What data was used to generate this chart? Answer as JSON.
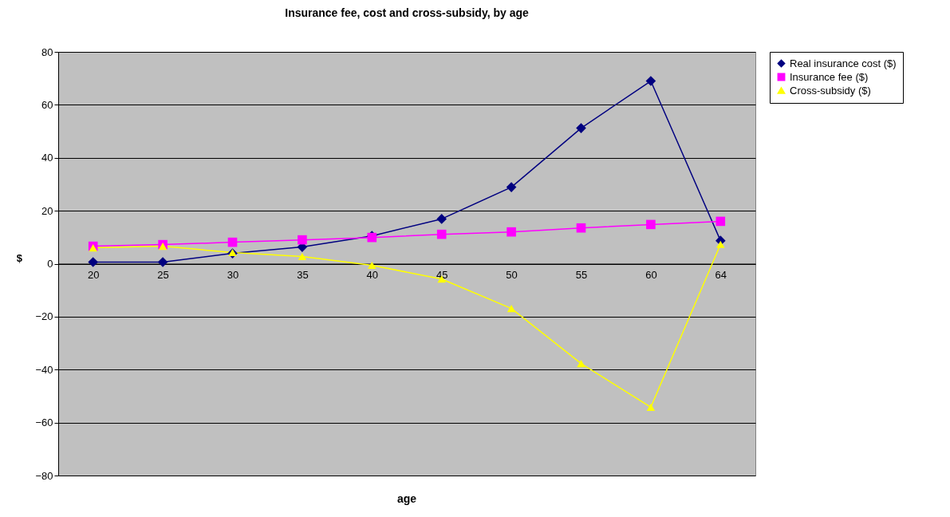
{
  "chart_data": {
    "type": "line",
    "title": "Insurance fee, cost and cross-subsidy, by age",
    "xlabel": "age",
    "ylabel": "$",
    "categories": [
      "20",
      "25",
      "30",
      "35",
      "40",
      "45",
      "50",
      "55",
      "60",
      "64"
    ],
    "series": [
      {
        "name": "Real insurance cost ($)",
        "color": "#000080",
        "marker": "diamond",
        "values": [
          0.6,
          0.6,
          3.9,
          6.3,
          10.5,
          16.9,
          28.9,
          51.2,
          69,
          8.7
        ]
      },
      {
        "name": "Insurance fee ($)",
        "color": "#ff00ff",
        "marker": "square",
        "values": [
          6.6,
          7.2,
          8.1,
          9,
          9.9,
          11.1,
          12,
          13.5,
          14.8,
          16
        ]
      },
      {
        "name": "Cross-subsidy ($)",
        "color": "#ffff00",
        "marker": "triangle",
        "values": [
          6,
          6.6,
          4.2,
          2.7,
          -0.6,
          -5.8,
          -16.9,
          -37.7,
          -54.2,
          7.3
        ]
      }
    ],
    "ylim": [
      -80,
      80
    ],
    "yticks": [
      -80,
      -60,
      -40,
      -20,
      0,
      20,
      40,
      60,
      80
    ],
    "grid": "y",
    "legend": "right",
    "line_style": "solid"
  }
}
